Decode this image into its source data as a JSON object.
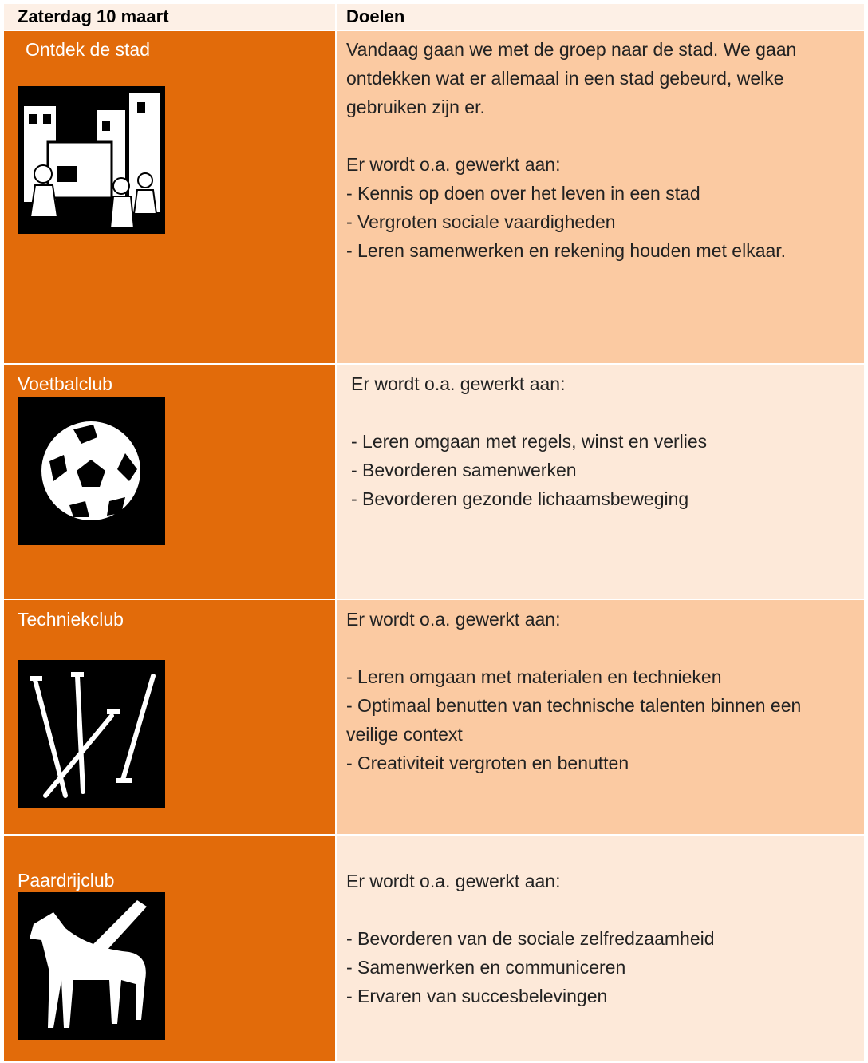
{
  "header": {
    "columns": [
      "Zaterdag 10 maart",
      "Doelen"
    ]
  },
  "rows": [
    {
      "title": "Ontdek de stad",
      "intro_paragraph": "Vandaag gaan we met de groep naar de stad. We gaan ontdekken wat er allemaal in een stad gebeurd, welke gebruiken zijn er.",
      "lead": "Er wordt o.a. gewerkt aan:",
      "items": [
        "- Kennis op doen over het leven in een stad",
        "- Vergroten sociale vaardigheden",
        "- Leren samenwerken en rekening houden met elkaar."
      ]
    },
    {
      "title": "Voetbalclub",
      "lead": "Er wordt o.a. gewerkt aan:",
      "items": [
        "- Leren omgaan met regels, winst en verlies",
        "- Bevorderen samenwerken",
        "- Bevorderen gezonde lichaamsbeweging"
      ]
    },
    {
      "title": "Techniekclub",
      "lead": "Er wordt o.a. gewerkt aan:",
      "items": [
        "- Leren omgaan met materialen en technieken",
        "- Optimaal benutten van technische talenten binnen een veilige context",
        "- Creativiteit vergroten en benutten"
      ]
    },
    {
      "title": "Paardrijclub",
      "lead": "Er wordt o.a. gewerkt aan:",
      "items": [
        "- Bevorderen van de sociale zelfredzaamheid",
        "- Samenwerken en communiceren",
        "- Ervaren van succesbelevingen"
      ]
    }
  ]
}
